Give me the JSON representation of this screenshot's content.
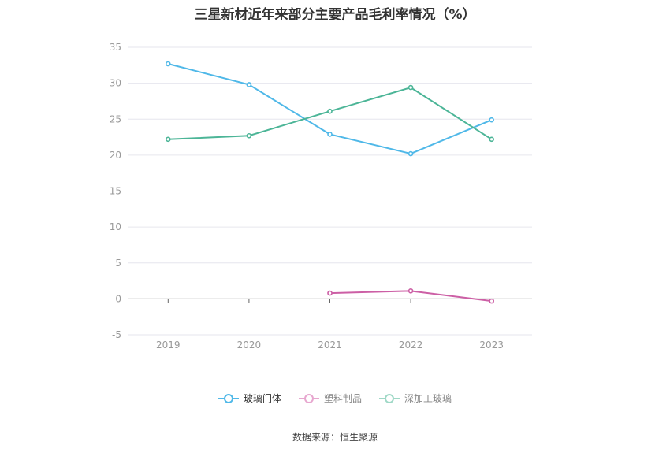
{
  "source_text": "数据来源：恒生聚源",
  "chart_data": {
    "type": "line",
    "title": "三星新材近年来部分主要产品毛利率情况（%）",
    "xlabel": "",
    "ylabel": "",
    "categories": [
      "2019",
      "2020",
      "2021",
      "2022",
      "2023"
    ],
    "ylim": [
      -5,
      35
    ],
    "yticks": [
      35,
      30,
      25,
      20,
      15,
      10,
      5,
      0,
      -5
    ],
    "grid": true,
    "legend_position": "bottom",
    "series": [
      {
        "name": "玻璃门体",
        "color": "#4fb8e8",
        "values": [
          32.7,
          29.8,
          22.9,
          20.2,
          24.9
        ]
      },
      {
        "name": "塑料制品",
        "color": "#cc5fa5",
        "values": [
          null,
          null,
          0.8,
          1.1,
          -0.3
        ]
      },
      {
        "name": "深加工玻璃",
        "color": "#4cb597",
        "values": [
          22.2,
          22.7,
          26.1,
          29.4,
          22.2
        ]
      }
    ]
  }
}
